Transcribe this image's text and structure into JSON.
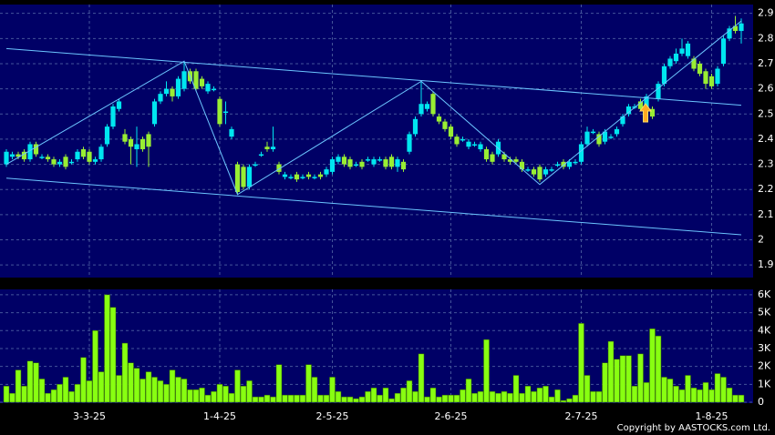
{
  "chart_data": [
    {
      "type": "candlestick",
      "open": [
        2.3,
        2.33,
        2.34,
        2.35,
        2.32,
        2.38,
        2.33,
        2.33,
        2.32,
        2.3,
        2.33,
        2.31,
        2.32,
        2.36,
        2.35,
        2.31,
        2.32,
        2.38,
        2.45,
        2.52,
        2.42,
        2.4,
        2.36,
        2.4,
        2.42,
        2.46,
        2.55,
        2.58,
        2.6,
        2.57,
        2.6,
        2.67,
        2.67,
        2.64,
        2.59,
        2.6,
        2.56,
        2.51,
        2.41,
        2.3,
        2.29,
        2.21,
        2.3,
        2.34,
        2.37,
        2.36,
        2.3,
        2.25,
        2.25,
        2.26,
        2.25,
        2.26,
        2.25,
        2.26,
        2.26,
        2.27,
        2.31,
        2.33,
        2.32,
        2.3,
        2.31,
        2.32,
        2.3,
        2.32,
        2.32,
        2.33,
        2.29,
        2.31,
        2.35,
        2.42,
        2.5,
        2.52,
        2.58,
        2.49,
        2.47,
        2.45,
        2.41,
        2.4,
        2.37,
        2.38,
        2.36,
        2.36,
        2.34,
        2.34,
        2.34,
        2.32,
        2.32,
        2.31,
        2.28,
        2.28,
        2.29,
        2.26,
        2.28,
        2.3,
        2.31,
        2.29,
        2.31,
        2.31,
        2.38,
        2.43,
        2.42,
        2.39,
        2.41,
        2.42,
        2.46,
        2.5,
        2.53,
        2.55,
        2.52,
        2.52,
        2.56,
        2.62,
        2.69,
        2.71,
        2.74,
        2.73,
        2.72,
        2.7,
        2.67,
        2.65,
        2.62,
        2.7,
        2.8,
        2.85,
        2.83
      ],
      "high": [
        2.36,
        2.35,
        2.35,
        2.36,
        2.39,
        2.39,
        2.34,
        2.34,
        2.33,
        2.32,
        2.34,
        2.32,
        2.36,
        2.37,
        2.36,
        2.33,
        2.38,
        2.46,
        2.54,
        2.56,
        2.44,
        2.41,
        2.45,
        2.41,
        2.43,
        2.56,
        2.59,
        2.63,
        2.61,
        2.65,
        2.71,
        2.68,
        2.68,
        2.65,
        2.63,
        2.61,
        2.57,
        2.55,
        2.45,
        2.31,
        2.3,
        2.3,
        2.31,
        2.35,
        2.39,
        2.45,
        2.31,
        2.27,
        2.26,
        2.27,
        2.26,
        2.27,
        2.26,
        2.27,
        2.29,
        2.33,
        2.34,
        2.34,
        2.33,
        2.31,
        2.32,
        2.33,
        2.33,
        2.33,
        2.33,
        2.34,
        2.33,
        2.32,
        2.43,
        2.49,
        2.63,
        2.55,
        2.59,
        2.5,
        2.48,
        2.46,
        2.42,
        2.41,
        2.4,
        2.39,
        2.39,
        2.37,
        2.35,
        2.4,
        2.35,
        2.33,
        2.33,
        2.32,
        2.29,
        2.29,
        2.3,
        2.29,
        2.29,
        2.31,
        2.32,
        2.32,
        2.32,
        2.39,
        2.45,
        2.44,
        2.43,
        2.44,
        2.42,
        2.45,
        2.5,
        2.54,
        2.54,
        2.56,
        2.58,
        2.53,
        2.63,
        2.7,
        2.73,
        2.76,
        2.8,
        2.79,
        2.73,
        2.71,
        2.68,
        2.66,
        2.69,
        2.81,
        2.85,
        2.89,
        2.88
      ],
      "low": [
        2.29,
        2.32,
        2.32,
        2.31,
        2.31,
        2.33,
        2.32,
        2.31,
        2.29,
        2.29,
        2.28,
        2.3,
        2.31,
        2.32,
        2.3,
        2.3,
        2.31,
        2.37,
        2.44,
        2.51,
        2.38,
        2.3,
        2.29,
        2.35,
        2.29,
        2.45,
        2.54,
        2.57,
        2.55,
        2.56,
        2.59,
        2.62,
        2.59,
        2.6,
        2.58,
        2.59,
        2.45,
        2.46,
        2.4,
        2.18,
        2.2,
        2.2,
        2.29,
        2.33,
        2.35,
        2.35,
        2.26,
        2.24,
        2.24,
        2.23,
        2.24,
        2.24,
        2.24,
        2.24,
        2.25,
        2.26,
        2.3,
        2.29,
        2.28,
        2.29,
        2.28,
        2.31,
        2.29,
        2.31,
        2.28,
        2.28,
        2.27,
        2.27,
        2.34,
        2.41,
        2.49,
        2.51,
        2.49,
        2.46,
        2.43,
        2.4,
        2.37,
        2.39,
        2.36,
        2.37,
        2.35,
        2.31,
        2.3,
        2.33,
        2.31,
        2.3,
        2.3,
        2.27,
        2.27,
        2.25,
        2.23,
        2.25,
        2.27,
        2.29,
        2.28,
        2.28,
        2.3,
        2.3,
        2.37,
        2.42,
        2.37,
        2.38,
        2.4,
        2.41,
        2.45,
        2.49,
        2.52,
        2.51,
        2.51,
        2.48,
        2.55,
        2.61,
        2.68,
        2.7,
        2.73,
        2.72,
        2.67,
        2.65,
        2.6,
        2.6,
        2.61,
        2.69,
        2.79,
        2.82,
        2.78
      ],
      "close": [
        2.35,
        2.34,
        2.33,
        2.32,
        2.38,
        2.34,
        2.33,
        2.32,
        2.3,
        2.31,
        2.29,
        2.31,
        2.35,
        2.33,
        2.31,
        2.32,
        2.37,
        2.45,
        2.53,
        2.55,
        2.39,
        2.37,
        2.38,
        2.36,
        2.37,
        2.55,
        2.58,
        2.6,
        2.57,
        2.64,
        2.67,
        2.63,
        2.6,
        2.61,
        2.62,
        2.6,
        2.46,
        2.51,
        2.44,
        2.19,
        2.21,
        2.29,
        2.3,
        2.34,
        2.36,
        2.37,
        2.27,
        2.26,
        2.25,
        2.24,
        2.25,
        2.25,
        2.25,
        2.25,
        2.28,
        2.32,
        2.33,
        2.3,
        2.29,
        2.3,
        2.29,
        2.32,
        2.32,
        2.32,
        2.29,
        2.29,
        2.32,
        2.28,
        2.42,
        2.48,
        2.54,
        2.54,
        2.5,
        2.47,
        2.44,
        2.41,
        2.38,
        2.4,
        2.39,
        2.38,
        2.38,
        2.32,
        2.31,
        2.39,
        2.32,
        2.31,
        2.31,
        2.28,
        2.28,
        2.26,
        2.24,
        2.28,
        2.28,
        2.3,
        2.29,
        2.31,
        2.31,
        2.38,
        2.43,
        2.43,
        2.38,
        2.43,
        2.41,
        2.44,
        2.49,
        2.53,
        2.53,
        2.52,
        2.57,
        2.49,
        2.62,
        2.69,
        2.72,
        2.74,
        2.76,
        2.78,
        2.68,
        2.66,
        2.62,
        2.61,
        2.68,
        2.8,
        2.84,
        2.83,
        2.86
      ],
      "up_color": "#00e6f0",
      "down_color": "#99ee33",
      "ylim": [
        1.85,
        2.935
      ],
      "yticks": [
        1.9,
        2,
        2.1,
        2.2,
        2.3,
        2.4,
        2.5,
        2.6,
        2.7,
        2.8,
        2.9
      ],
      "grid": true,
      "trendlines": [
        {
          "color": "#6cc6ff",
          "x": [
            0,
            30,
            39,
            70,
            90,
            124
          ],
          "y": [
            2.3,
            2.71,
            2.18,
            2.63,
            2.22,
            2.87
          ]
        },
        {
          "color": "#6cc6ff",
          "x": [
            0,
            124
          ],
          "y": [
            2.76,
            2.535
          ]
        },
        {
          "color": "#6cc6ff",
          "x": [
            0,
            124
          ],
          "y": [
            2.245,
            2.02
          ]
        }
      ]
    },
    {
      "type": "bar",
      "categories": [
        null,
        null,
        null,
        null,
        null,
        null,
        null,
        null,
        null,
        null,
        null,
        null,
        null,
        null,
        "3-3-25",
        null,
        null,
        null,
        null,
        null,
        null,
        null,
        null,
        null,
        null,
        null,
        null,
        null,
        null,
        null,
        null,
        null,
        null,
        null,
        null,
        null,
        "1-4-25",
        null,
        null,
        null,
        null,
        null,
        null,
        null,
        null,
        null,
        null,
        null,
        null,
        null,
        null,
        null,
        null,
        null,
        null,
        "2-5-25",
        null,
        null,
        null,
        null,
        null,
        null,
        null,
        null,
        null,
        null,
        null,
        null,
        null,
        null,
        null,
        null,
        null,
        null,
        null,
        "2-6-25",
        null,
        null,
        null,
        null,
        null,
        null,
        null,
        null,
        null,
        null,
        null,
        null,
        null,
        null,
        null,
        null,
        null,
        null,
        null,
        null,
        null,
        "2-7-25",
        null,
        null,
        null,
        null,
        null,
        null,
        null,
        null,
        null,
        null,
        null,
        null,
        null,
        null,
        null,
        null,
        null,
        null,
        null,
        null,
        null,
        "1-8-25",
        null,
        null,
        null,
        null,
        null
      ],
      "values": [
        900,
        500,
        1800,
        900,
        2300,
        2200,
        1300,
        500,
        700,
        1000,
        1400,
        600,
        1000,
        2500,
        1200,
        4000,
        1700,
        6000,
        5300,
        1500,
        3300,
        2200,
        1900,
        1300,
        1700,
        1400,
        1200,
        1000,
        1800,
        1400,
        1300,
        700,
        700,
        800,
        400,
        600,
        1000,
        900,
        500,
        1800,
        900,
        1200,
        300,
        300,
        400,
        300,
        2100,
        400,
        400,
        400,
        400,
        2100,
        1400,
        400,
        400,
        1400,
        600,
        300,
        300,
        200,
        300,
        600,
        800,
        400,
        800,
        200,
        500,
        800,
        1200,
        600,
        2700,
        300,
        800,
        300,
        400,
        400,
        400,
        700,
        1300,
        500,
        600,
        3500,
        600,
        500,
        600,
        500,
        1500,
        500,
        900,
        600,
        800,
        900,
        300,
        700,
        100,
        200,
        400,
        4400,
        1500,
        600,
        600,
        2200,
        3400,
        2400,
        2600,
        2600,
        900,
        2700,
        1100,
        4100,
        3700,
        1400,
        1300,
        900,
        700,
        1500,
        800,
        700,
        1100,
        700,
        1600,
        1400,
        800,
        400,
        400
      ],
      "color": "#88ff11",
      "ylim": [
        0,
        6300
      ],
      "yticks": [
        0,
        {
          "value": 1000,
          "label": "1K"
        },
        {
          "value": 2000,
          "label": "2K"
        },
        {
          "value": 3000,
          "label": "3K"
        },
        {
          "value": 4000,
          "label": "4K"
        },
        {
          "value": 5000,
          "label": "5K"
        },
        {
          "value": 6000,
          "label": "6K"
        }
      ],
      "grid": true
    }
  ],
  "copyright": "Copyright by AASTOCKS.com Ltd."
}
